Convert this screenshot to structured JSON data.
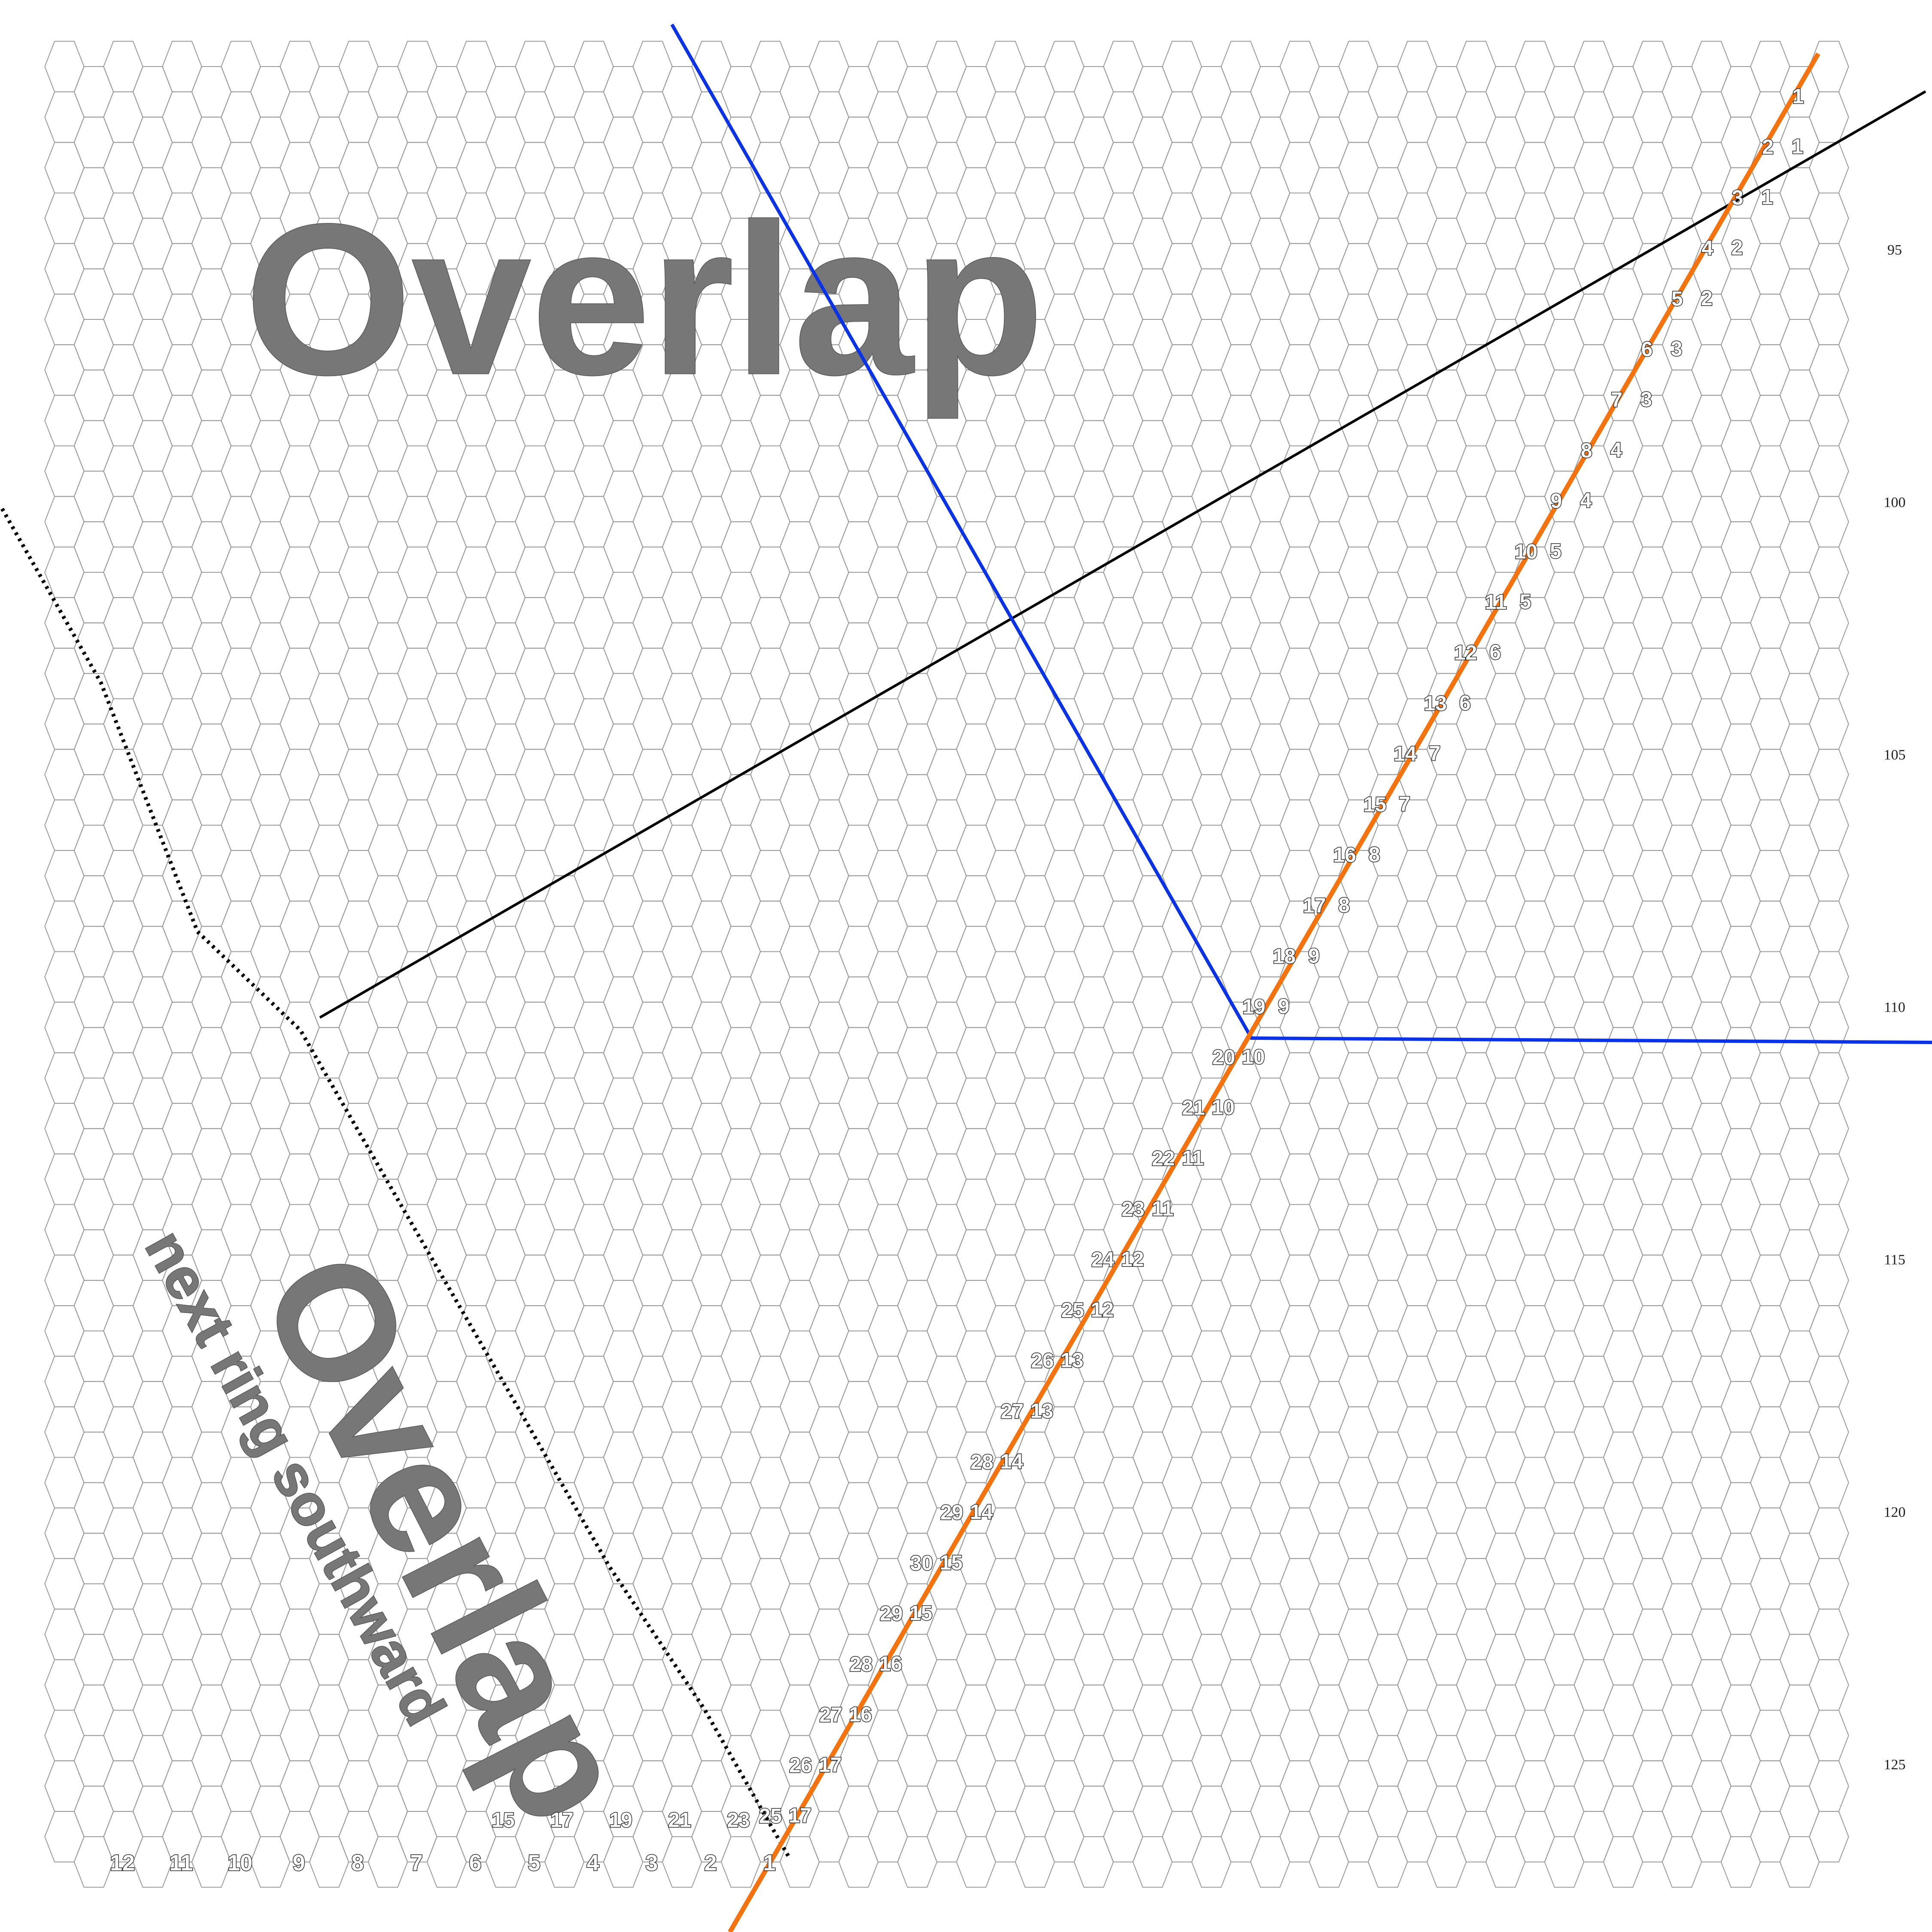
{
  "colors": {
    "grid": "#9a9a9a",
    "orange_line": "#f5730f",
    "blue_line": "#0a32e6",
    "black_line": "#000000",
    "overlay_text": "#777777"
  },
  "overlays": {
    "top_label": "Overlap",
    "bottom_label": "Overlap",
    "bottom_sublabel": "next ring southward"
  },
  "row_numbers": [
    "95",
    "100",
    "105",
    "110",
    "115",
    "120",
    "125"
  ],
  "orange_line_numbers": [
    "1",
    "2",
    "3",
    "4",
    "5",
    "6",
    "7",
    "8",
    "9",
    "10",
    "11",
    "12",
    "13",
    "14",
    "15",
    "16",
    "17",
    "18",
    "19",
    "20",
    "21",
    "22",
    "23",
    "24",
    "25",
    "26",
    "27",
    "28",
    "29",
    "30",
    "29",
    "28",
    "27",
    "26",
    "25"
  ],
  "offset_numbers": [
    "1",
    "1",
    "2",
    "2",
    "3",
    "3",
    "4",
    "4",
    "5",
    "5",
    "6",
    "6",
    "7",
    "7",
    "8",
    "8",
    "9",
    "9",
    "10",
    "10",
    "11",
    "11",
    "12",
    "12",
    "13",
    "13",
    "14",
    "14",
    "15",
    "15",
    "16",
    "16",
    "17",
    "17"
  ],
  "bottom_row_odd_numbers": [
    "15",
    "17",
    "19",
    "21",
    "23"
  ],
  "bottom_edge_numbers": [
    "12",
    "11",
    "10",
    "9",
    "8",
    "7",
    "6",
    "5",
    "4",
    "3",
    "2",
    "1"
  ]
}
